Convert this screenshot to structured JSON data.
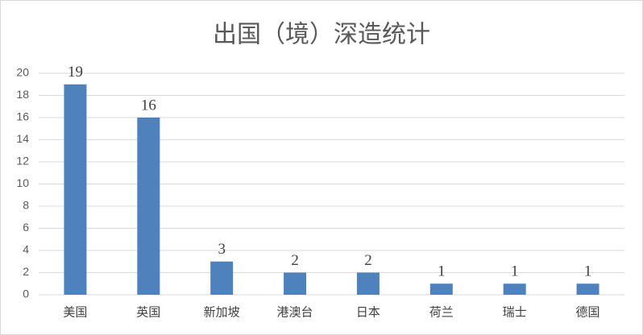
{
  "chart_data": {
    "type": "bar",
    "title": "出国（境）深造统计",
    "categories": [
      "美国",
      "英国",
      "新加坡",
      "港澳台",
      "日本",
      "荷兰",
      "瑞士",
      "德国"
    ],
    "values": [
      19,
      16,
      3,
      2,
      2,
      1,
      1,
      1
    ],
    "color": "#4f81bd",
    "ylim": [
      0,
      20
    ],
    "yticks": [
      0,
      2,
      4,
      6,
      8,
      10,
      12,
      14,
      16,
      18,
      20
    ],
    "grid": true
  }
}
